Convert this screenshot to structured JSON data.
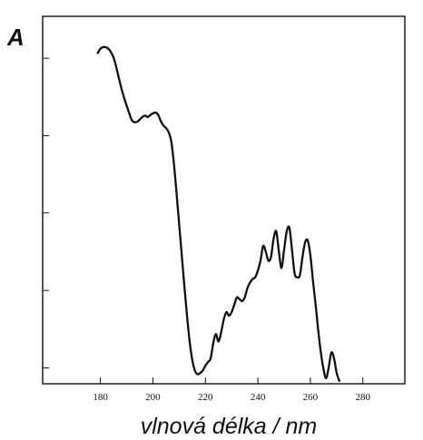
{
  "chart_data": {
    "type": "line",
    "panel_label": "A",
    "title": "",
    "xlabel": "vlnová délka / nm",
    "ylabel": "",
    "xlim": [
      158,
      296
    ],
    "ylim": [
      0,
      100
    ],
    "x_ticks": [
      180,
      200,
      220,
      240,
      260,
      280
    ],
    "x_tick_labels": [
      "180",
      "200",
      "220",
      "240",
      "260",
      "280"
    ],
    "y_ticks": [
      4.3,
      25.4,
      46.5,
      67.5,
      88.6
    ],
    "y_tick_labels": [],
    "grid": false,
    "legend": "none",
    "line_color": "#111111",
    "series": [
      {
        "x": [
          179,
          180,
          181,
          182,
          183,
          184,
          185,
          186,
          187,
          188,
          189,
          190,
          191,
          192,
          193,
          194,
          195,
          196,
          197,
          198,
          199,
          200,
          201,
          202,
          203,
          204,
          205,
          206,
          207,
          208,
          209,
          210,
          211,
          212,
          213,
          214,
          215,
          216,
          217,
          218,
          219,
          220,
          221,
          222,
          223,
          224,
          225,
          226,
          227,
          228,
          229,
          230,
          231,
          232,
          233,
          234,
          235,
          236,
          237,
          238,
          239,
          240,
          241,
          242,
          243,
          244,
          245,
          246,
          247,
          248,
          249,
          250,
          251,
          252,
          253,
          254,
          255,
          256,
          257,
          258,
          259,
          260,
          261,
          262,
          263,
          264,
          265,
          266,
          267,
          268,
          269,
          270,
          271
        ],
        "y": [
          90.0,
          91.2,
          91.6,
          91.6,
          91.2,
          90.3,
          88.8,
          86.3,
          83.3,
          80.4,
          77.9,
          75.7,
          73.6,
          71.7,
          71.2,
          71.3,
          71.9,
          72.6,
          73.0,
          72.6,
          73.1,
          73.6,
          73.8,
          73.2,
          71.5,
          70.3,
          69.6,
          68.5,
          66.0,
          60.0,
          52.0,
          43.5,
          35.0,
          26.5,
          18.5,
          11.5,
          6.5,
          3.6,
          2.6,
          2.9,
          3.6,
          4.9,
          5.9,
          6.9,
          11.0,
          13.5,
          11.5,
          14.0,
          17.5,
          19.5,
          18.5,
          19.5,
          21.5,
          23.5,
          23.0,
          22.5,
          23.5,
          26.0,
          27.5,
          28.5,
          29.0,
          30.8,
          33.5,
          37.5,
          36.0,
          33.5,
          34.5,
          39.5,
          41.5,
          36.0,
          31.5,
          36.5,
          41.5,
          42.5,
          36.5,
          30.0,
          29.0,
          29.5,
          34.5,
          38.5,
          39.0,
          35.0,
          28.0,
          21.5,
          14.5,
          8.5,
          4.0,
          1.5,
          4.5,
          8.5,
          7.0,
          3.0,
          0.8
        ]
      }
    ]
  }
}
